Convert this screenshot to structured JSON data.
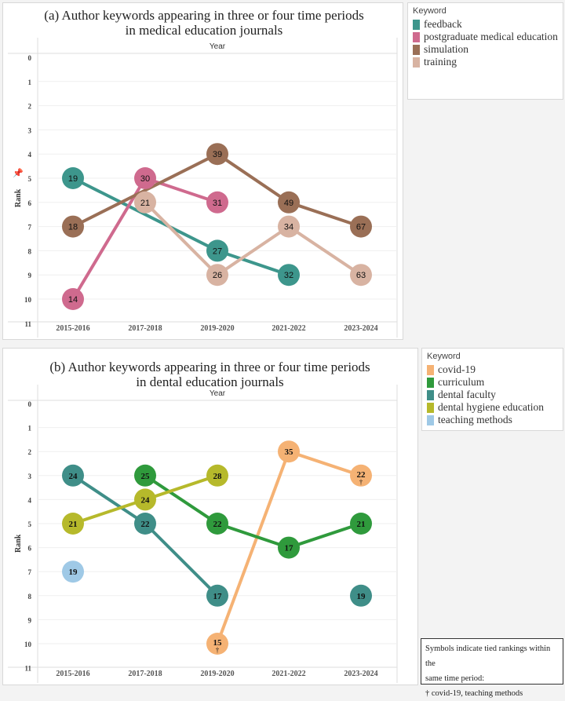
{
  "chart_data": [
    {
      "type": "line",
      "title": "(a) Author keywords appearing in three or four time periods in medical education journals",
      "title_lines": [
        "(a) Author keywords appearing in three or four time periods",
        "in medical education journals"
      ],
      "xlabel": "Year",
      "ylabel": "Rank",
      "categories": [
        "2015-2016",
        "2017-2018",
        "2019-2020",
        "2021-2022",
        "2023-2024"
      ],
      "ylim": [
        0,
        11
      ],
      "y_reversed": true,
      "yticks": [
        0,
        1,
        2,
        3,
        4,
        5,
        6,
        7,
        8,
        9,
        10,
        11
      ],
      "grid": true,
      "legend_title": "Keyword",
      "legend_position": "right",
      "series": [
        {
          "name": "feedback",
          "color": "#3d968c",
          "points": [
            {
              "x": "2015-2016",
              "rank": 5,
              "label": "19"
            },
            {
              "x": "2019-2020",
              "rank": 8,
              "label": "27"
            },
            {
              "x": "2021-2022",
              "rank": 9,
              "label": "32"
            }
          ]
        },
        {
          "name": "postgraduate medical education",
          "color": "#cf6a8e",
          "points": [
            {
              "x": "2015-2016",
              "rank": 10,
              "label": "14"
            },
            {
              "x": "2017-2018",
              "rank": 5,
              "label": "30"
            },
            {
              "x": "2019-2020",
              "rank": 6,
              "label": "31"
            }
          ]
        },
        {
          "name": "simulation",
          "color": "#9a6f56",
          "points": [
            {
              "x": "2015-2016",
              "rank": 7,
              "label": "18"
            },
            {
              "x": "2019-2020",
              "rank": 4,
              "label": "39"
            },
            {
              "x": "2021-2022",
              "rank": 6,
              "label": "49"
            },
            {
              "x": "2023-2024",
              "rank": 7,
              "label": "67"
            }
          ]
        },
        {
          "name": "training",
          "color": "#d8b3a2",
          "points": [
            {
              "x": "2017-2018",
              "rank": 6,
              "label": "21"
            },
            {
              "x": "2019-2020",
              "rank": 9,
              "label": "26"
            },
            {
              "x": "2021-2022",
              "rank": 7,
              "label": "34"
            },
            {
              "x": "2023-2024",
              "rank": 9,
              "label": "63"
            }
          ]
        }
      ]
    },
    {
      "type": "line",
      "title": "(b) Author keywords appearing in three or four time periods in dental education journals",
      "title_lines": [
        "(b) Author keywords appearing in three or four time periods",
        "in dental education journals"
      ],
      "xlabel": "Year",
      "ylabel": "Rank",
      "categories": [
        "2015-2016",
        "2017-2018",
        "2019-2020",
        "2021-2022",
        "2023-2024"
      ],
      "ylim": [
        0,
        11
      ],
      "y_reversed": true,
      "yticks": [
        0,
        1,
        2,
        3,
        4,
        5,
        6,
        7,
        8,
        9,
        10,
        11
      ],
      "grid": true,
      "legend_title": "Keyword",
      "legend_position": "right",
      "note": [
        "Symbols indicate tied rankings within the",
        "same time period:",
        "† covid-19, teaching methods"
      ],
      "series": [
        {
          "name": "covid-19",
          "color": "#f5b274",
          "points": [
            {
              "x": "2019-2020",
              "rank": 10,
              "label": "15",
              "symbol": "†"
            },
            {
              "x": "2021-2022",
              "rank": 2,
              "label": "35"
            },
            {
              "x": "2023-2024",
              "rank": 3,
              "label": "22",
              "symbol": "†"
            }
          ]
        },
        {
          "name": "curriculum",
          "color": "#2f9a3c",
          "points": [
            {
              "x": "2017-2018",
              "rank": 3,
              "label": "25"
            },
            {
              "x": "2019-2020",
              "rank": 5,
              "label": "22"
            },
            {
              "x": "2021-2022",
              "rank": 6,
              "label": "17"
            },
            {
              "x": "2023-2024",
              "rank": 5,
              "label": "21"
            }
          ]
        },
        {
          "name": "dental faculty",
          "color": "#3f8e88",
          "breaks_after": [
            "2019-2020"
          ],
          "points": [
            {
              "x": "2015-2016",
              "rank": 3,
              "label": "24"
            },
            {
              "x": "2017-2018",
              "rank": 5,
              "label": "22"
            },
            {
              "x": "2019-2020",
              "rank": 8,
              "label": "17"
            },
            {
              "x": "2023-2024",
              "rank": 8,
              "label": "19"
            }
          ]
        },
        {
          "name": "dental hygiene education",
          "color": "#b6b92b",
          "points": [
            {
              "x": "2015-2016",
              "rank": 5,
              "label": "21"
            },
            {
              "x": "2017-2018",
              "rank": 4,
              "label": "24"
            },
            {
              "x": "2019-2020",
              "rank": 3,
              "label": "28"
            }
          ]
        },
        {
          "name": "teaching methods",
          "color": "#9fc9e6",
          "points": [
            {
              "x": "2015-2016",
              "rank": 7,
              "label": "19"
            }
          ]
        }
      ]
    }
  ]
}
